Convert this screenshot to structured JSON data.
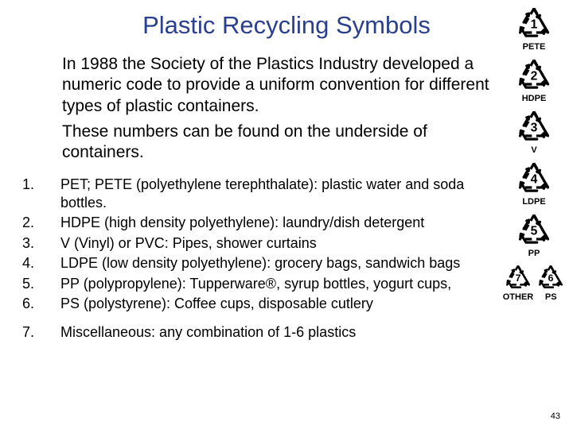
{
  "colors": {
    "title": "#2a3f8f",
    "body": "#000000",
    "symbol": "#000000",
    "background": "#ffffff"
  },
  "fonts": {
    "title_size": 31,
    "intro_size": 21,
    "list_size": 18,
    "symbol_label_size": 11,
    "pagenum_size": 11
  },
  "title": "Plastic Recycling Symbols",
  "intro": {
    "p1": "In 1988 the Society of the Plastics Industry developed a numeric code to provide a uniform convention for different types of plastic containers.",
    "p2": "These numbers can be found on the underside of containers."
  },
  "items": [
    {
      "num": "1.",
      "text": "PET; PETE (polyethylene terephthalate): plastic water and soda bottles."
    },
    {
      "num": "2.",
      "text": "HDPE (high density polyethylene): laundry/dish detergent"
    },
    {
      "num": "3.",
      "text": "V (Vinyl) or PVC: Pipes, shower curtains"
    },
    {
      "num": "4.",
      "text": "LDPE (low density polyethylene): grocery bags, sandwich bags"
    },
    {
      "num": "5.",
      "text": "PP (polypropylene): Tupperware®, syrup bottles, yogurt cups,"
    },
    {
      "num": "6.",
      "text": "PS (polystyrene): Coffee cups, disposable cutlery"
    },
    {
      "num": "7.",
      "text": "Miscellaneous: any combination of 1-6 plastics"
    }
  ],
  "symbols": [
    {
      "n": "1",
      "label": "PETE"
    },
    {
      "n": "2",
      "label": "HDPE"
    },
    {
      "n": "3",
      "label": "V"
    },
    {
      "n": "4",
      "label": "LDPE"
    },
    {
      "n": "5",
      "label": "PP"
    },
    {
      "n": "7",
      "label": "OTHER"
    },
    {
      "n": "6",
      "label": "PS"
    }
  ],
  "symbol_layout": {
    "icon_size": 46,
    "bottom_icon_size": 36,
    "stroke_width": 3.2
  },
  "page_number": "43"
}
